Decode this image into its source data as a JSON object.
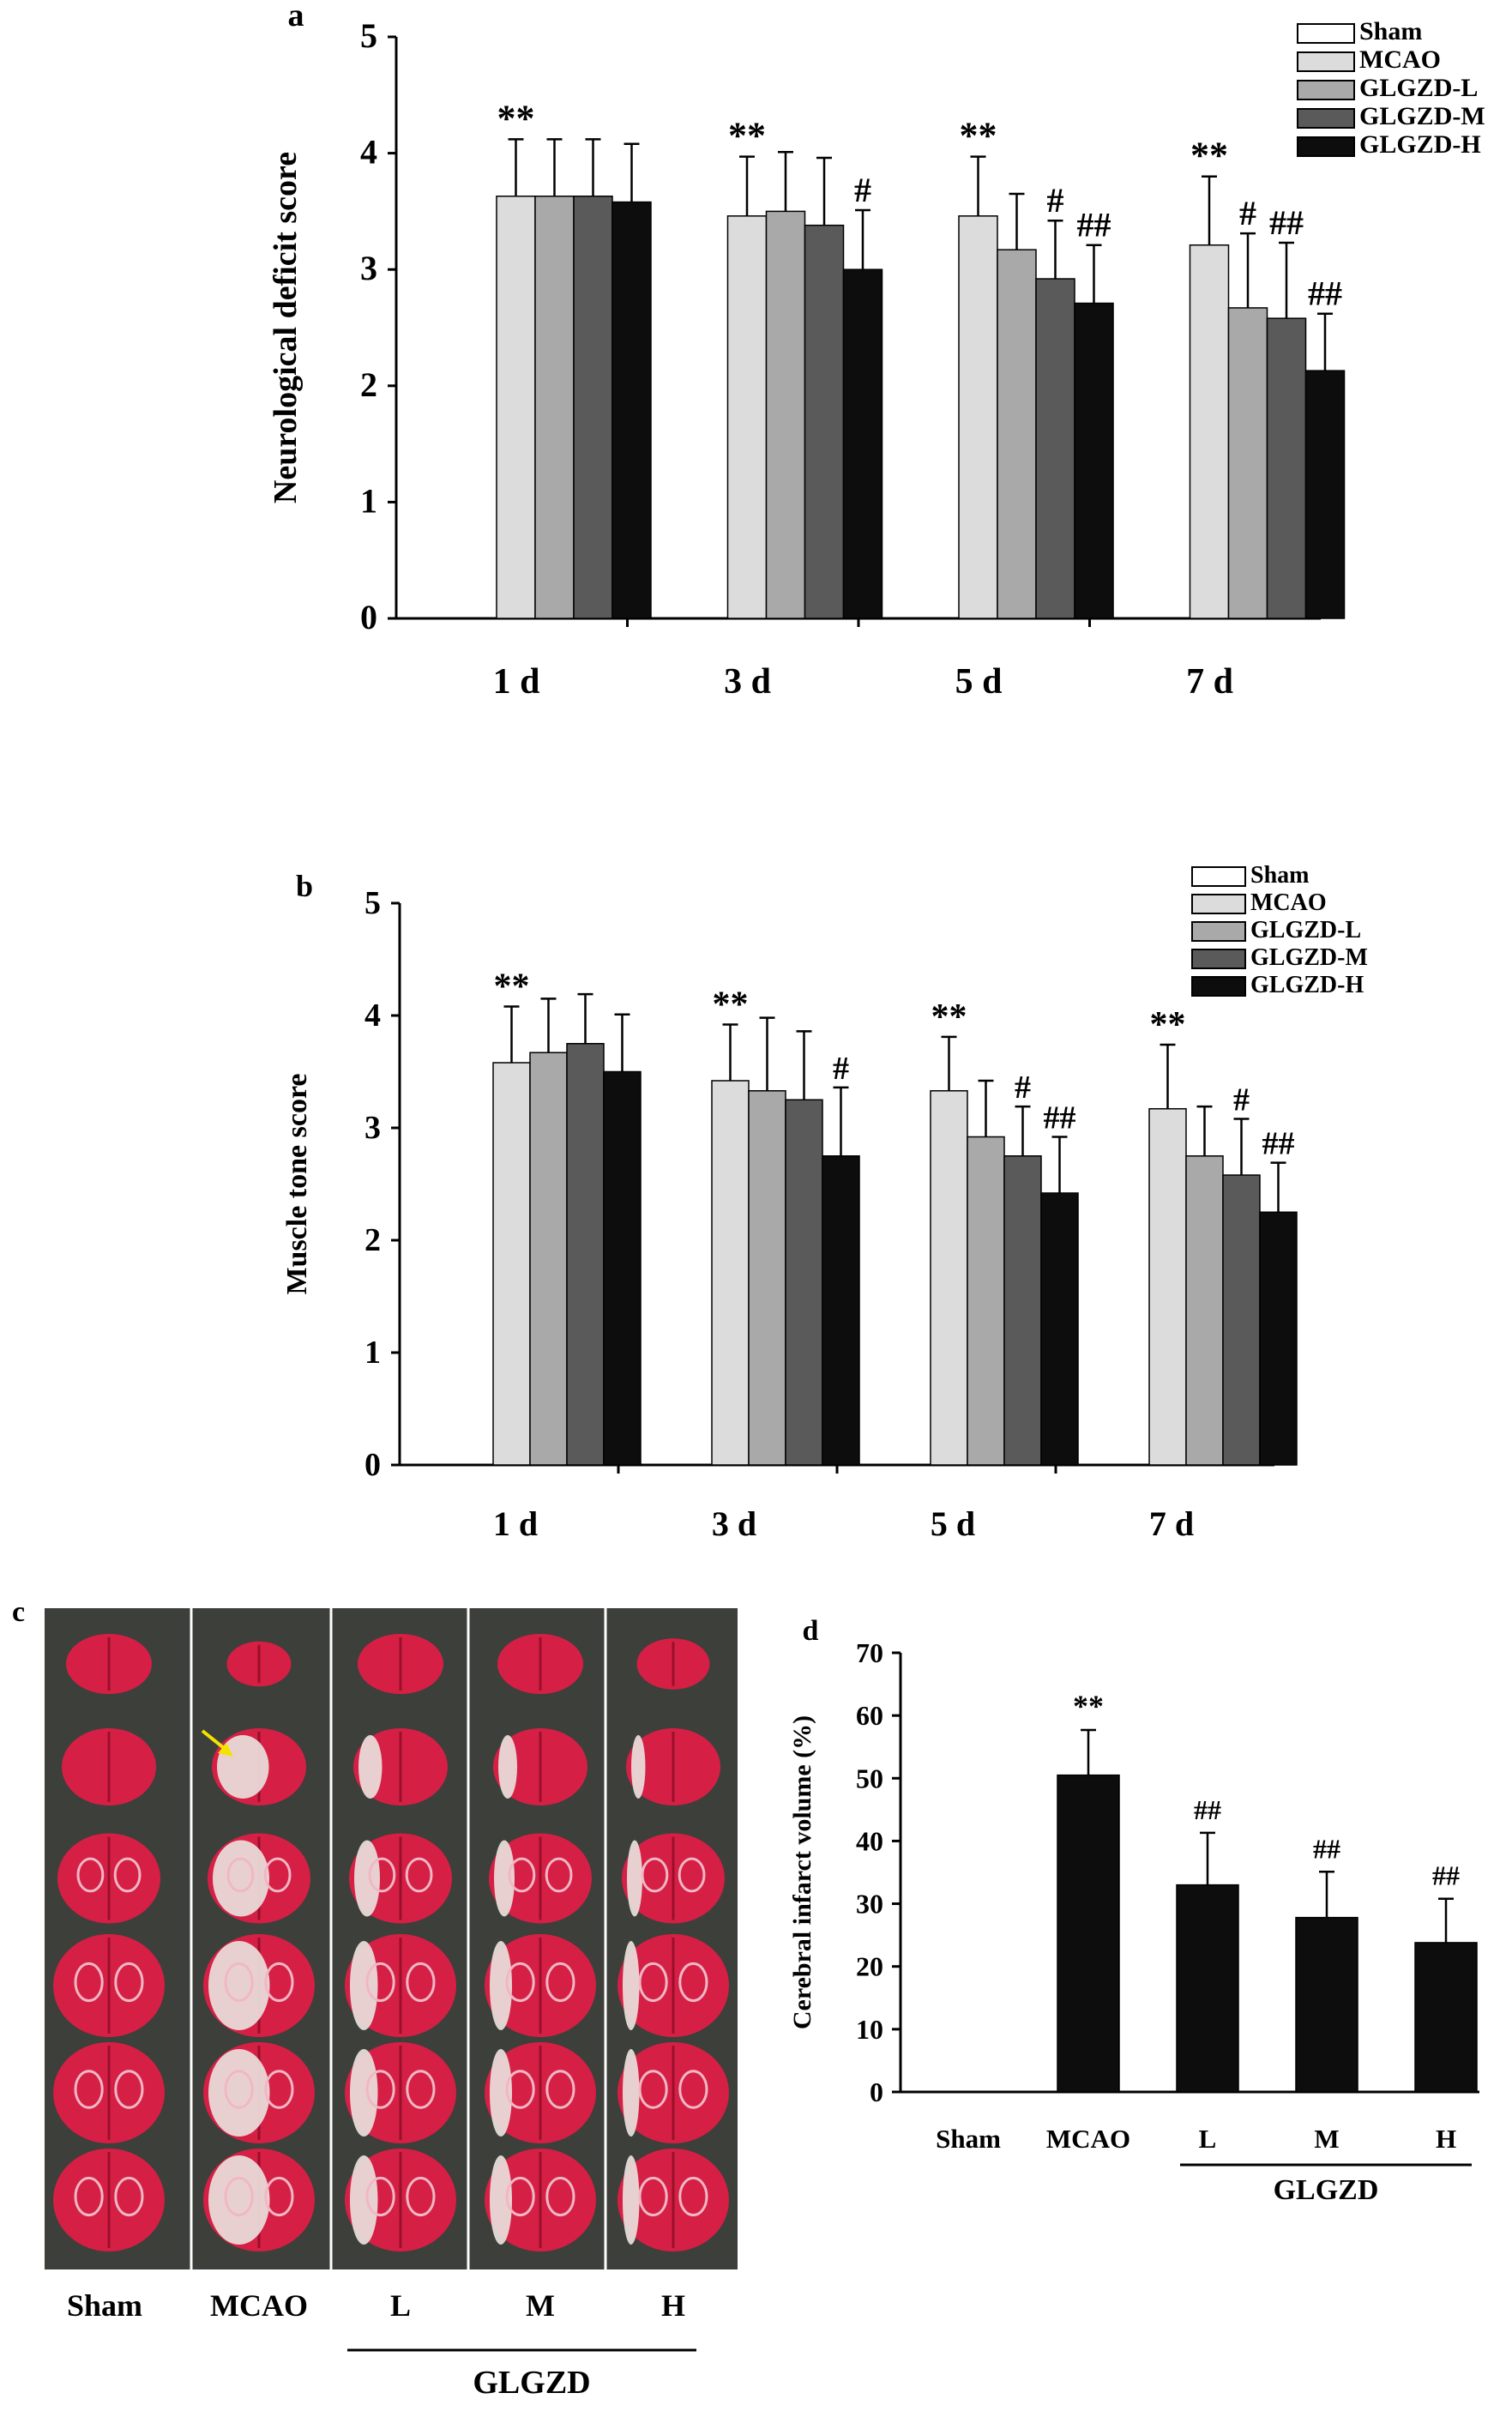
{
  "chart_data": [
    {
      "panel": "a",
      "type": "bar",
      "ylabel": "Neurological deficit score",
      "ylim": [
        0,
        5
      ],
      "yticks": [
        "0",
        "1",
        "2",
        "3",
        "4",
        "5"
      ],
      "categories": [
        "1 d",
        "3 d",
        "5 d",
        "7 d"
      ],
      "legend_position": "top-right",
      "series": [
        {
          "name": "Sham",
          "color": "#ffffff",
          "values": [
            0,
            0,
            0,
            0
          ],
          "errors": [
            0,
            0,
            0,
            0
          ],
          "marks": [
            "",
            "",
            "",
            ""
          ]
        },
        {
          "name": "MCAO",
          "color": "#dcdcdc",
          "values": [
            3.63,
            3.46,
            3.46,
            3.21
          ],
          "errors": [
            0.49,
            0.51,
            0.51,
            0.59
          ],
          "marks": [
            "**",
            "**",
            "**",
            "**"
          ]
        },
        {
          "name": "GLGZD-L",
          "color": "#a9a9a9",
          "values": [
            3.63,
            3.5,
            3.17,
            2.67
          ],
          "errors": [
            0.49,
            0.51,
            0.48,
            0.64
          ],
          "marks": [
            "",
            "",
            "",
            "#"
          ]
        },
        {
          "name": "GLGZD-M",
          "color": "#5a5a5a",
          "values": [
            3.63,
            3.38,
            2.92,
            2.58
          ],
          "errors": [
            0.49,
            0.58,
            0.5,
            0.65
          ],
          "marks": [
            "",
            "",
            "#",
            "##"
          ]
        },
        {
          "name": "GLGZD-H",
          "color": "#0d0d0d",
          "values": [
            3.58,
            3.0,
            2.71,
            2.13
          ],
          "errors": [
            0.5,
            0.51,
            0.5,
            0.49
          ],
          "marks": [
            "",
            "#",
            "##",
            "##"
          ]
        }
      ]
    },
    {
      "panel": "b",
      "type": "bar",
      "ylabel": "Muscle tone score",
      "ylim": [
        0,
        5
      ],
      "yticks": [
        "0",
        "1",
        "2",
        "3",
        "4",
        "5"
      ],
      "categories": [
        "1 d",
        "3 d",
        "5 d",
        "7 d"
      ],
      "legend_position": "top-right",
      "series": [
        {
          "name": "Sham",
          "color": "#ffffff",
          "values": [
            0,
            0,
            0,
            0
          ],
          "errors": [
            0,
            0,
            0,
            0
          ],
          "marks": [
            "",
            "",
            "",
            ""
          ]
        },
        {
          "name": "MCAO",
          "color": "#dcdcdc",
          "values": [
            3.58,
            3.42,
            3.33,
            3.17
          ],
          "errors": [
            0.5,
            0.5,
            0.48,
            0.57
          ],
          "marks": [
            "**",
            "**",
            "**",
            "**"
          ]
        },
        {
          "name": "GLGZD-L",
          "color": "#a9a9a9",
          "values": [
            3.67,
            3.33,
            2.92,
            2.75
          ],
          "errors": [
            0.48,
            0.65,
            0.5,
            0.44
          ],
          "marks": [
            "",
            "",
            "",
            ""
          ]
        },
        {
          "name": "GLGZD-M",
          "color": "#5a5a5a",
          "values": [
            3.75,
            3.25,
            2.75,
            2.58
          ],
          "errors": [
            0.44,
            0.61,
            0.44,
            0.5
          ],
          "marks": [
            "",
            "",
            "#",
            "#"
          ]
        },
        {
          "name": "GLGZD-H",
          "color": "#0d0d0d",
          "values": [
            3.5,
            2.75,
            2.42,
            2.25
          ],
          "errors": [
            0.51,
            0.61,
            0.5,
            0.44
          ],
          "marks": [
            "",
            "#",
            "##",
            "##"
          ]
        }
      ]
    },
    {
      "panel": "d",
      "type": "bar",
      "ylabel": "Cerebral infarct volume (%)",
      "ylim": [
        0,
        70
      ],
      "yticks": [
        "0",
        "10",
        "20",
        "30",
        "40",
        "50",
        "60",
        "70"
      ],
      "categories": [
        "Sham",
        "MCAO",
        "L",
        "M",
        "H"
      ],
      "group_label": "GLGZD",
      "bar_color": "#0d0d0d",
      "values": [
        0,
        50.5,
        33.0,
        27.8,
        23.8
      ],
      "errors": [
        0,
        7.2,
        8.3,
        7.3,
        7.0
      ],
      "marks": [
        "",
        "**",
        "##",
        "##",
        "##"
      ]
    }
  ],
  "panel_c": {
    "panel_label": "c",
    "column_labels": [
      "Sham",
      "MCAO",
      "L",
      "M",
      "H"
    ],
    "group_label": "GLGZD",
    "rows": 6,
    "background_color": "#3d3f3a",
    "tissue_red": "#d61f45",
    "infarct_white": "#eae0dc",
    "arrow_color": "#f4e300"
  }
}
